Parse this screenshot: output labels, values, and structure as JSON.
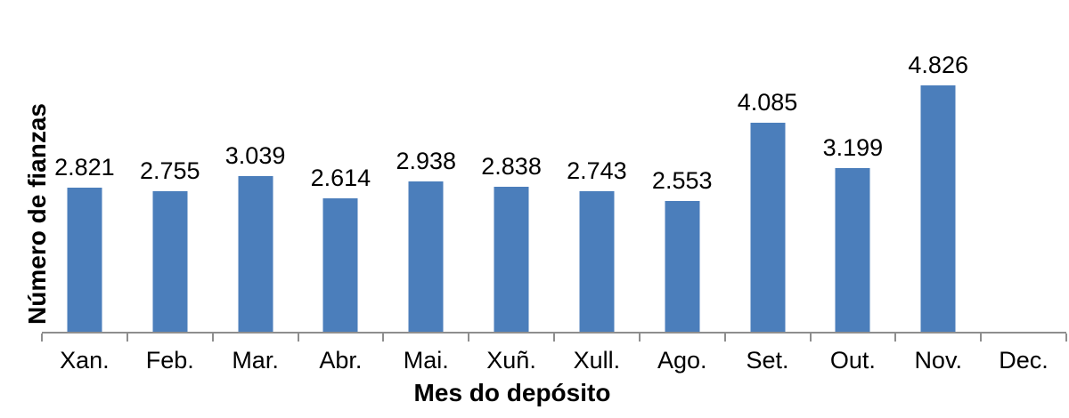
{
  "chart_data": {
    "type": "bar",
    "title": "",
    "xlabel": "Mes do depósito",
    "ylabel": "Número de fianzas",
    "categories": [
      "Xan.",
      "Feb.",
      "Mar.",
      "Abr.",
      "Mai.",
      "Xuñ.",
      "Xull.",
      "Ago.",
      "Set.",
      "Out.",
      "Nov.",
      "Dec."
    ],
    "values": [
      2821,
      2755,
      3039,
      2614,
      2938,
      2838,
      2743,
      2553,
      4085,
      3199,
      4826,
      null
    ],
    "value_labels": [
      "2.821",
      "2.755",
      "3.039",
      "2.614",
      "2.938",
      "2.838",
      "2.743",
      "2.553",
      "4.085",
      "3.199",
      "4.826",
      ""
    ],
    "ylim": [
      0,
      6000
    ],
    "grid": false,
    "legend": false,
    "colors": {
      "bar": "#4b7ebb",
      "axis": "#8e8e8e",
      "text": "#000000",
      "background": "#ffffff"
    }
  }
}
